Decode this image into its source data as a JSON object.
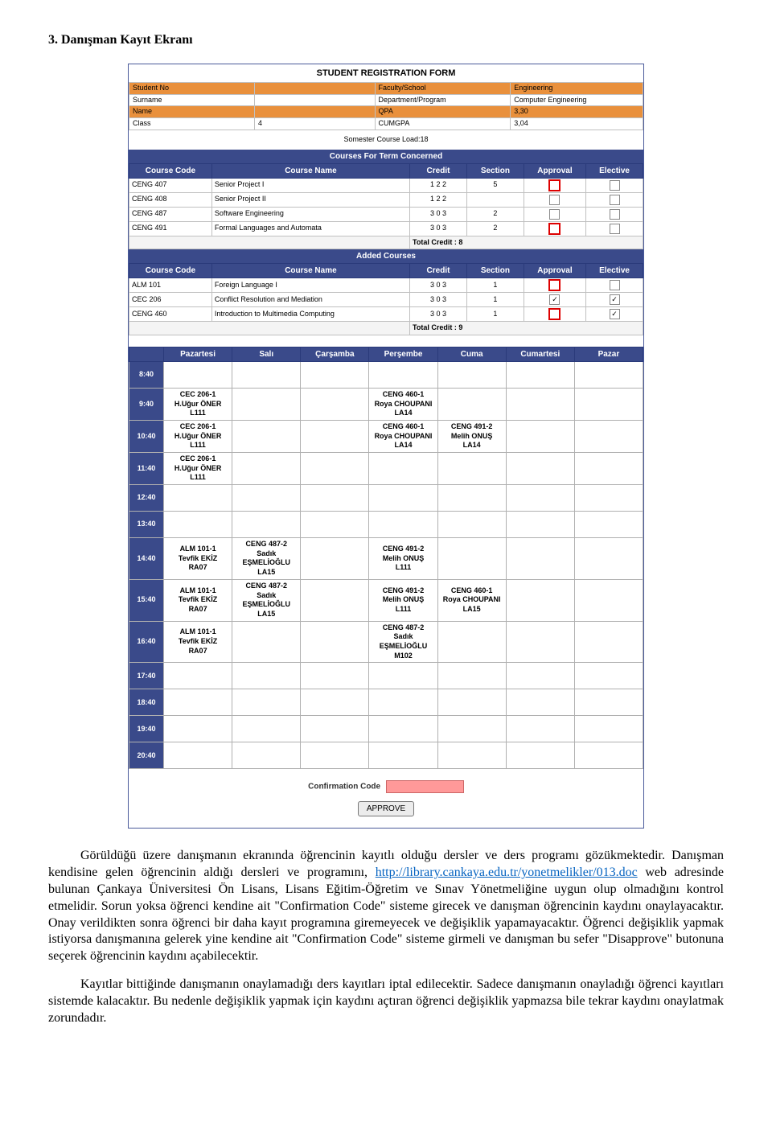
{
  "heading": "3.   Danışman Kayıt Ekranı",
  "reg": {
    "formTitle": "STUDENT REGISTRATION FORM",
    "labels": {
      "studentNo": "Student No",
      "faculty": "Faculty/School",
      "facultyVal": "Engineering",
      "surname": "Surname",
      "dept": "Department/Program",
      "deptVal": "Computer Engineering",
      "name": "Name",
      "qpa": "QPA",
      "qpaVal": "3,30",
      "class": "Class",
      "classVal": "4",
      "cum": "CUMGPA",
      "cumVal": "3,04"
    },
    "semLoad": "Somester Course Load:18",
    "termBand": "Courses For Term Concerned",
    "headers": {
      "c": "Course Code",
      "n": "Course Name",
      "cr": "Credit",
      "s": "Section",
      "a": "Approval",
      "e": "Elective"
    },
    "rows": [
      {
        "c": "CENG 407",
        "n": "Senior Project I",
        "cr": "1 2 2",
        "s": "5",
        "a": "red",
        "e": ""
      },
      {
        "c": "CENG 408",
        "n": "Senior Project II",
        "cr": "1 2 2",
        "s": "",
        "a": "",
        "e": ""
      },
      {
        "c": "CENG 487",
        "n": "Software Engineering",
        "cr": "3 0 3",
        "s": "2",
        "a": "",
        "e": ""
      },
      {
        "c": "CENG 491",
        "n": "Formal Languages and Automata",
        "cr": "3 0 3",
        "s": "2",
        "a": "red",
        "e": ""
      }
    ],
    "tot1": "Total Credit : 8",
    "addBand": "Added Courses",
    "rows2": [
      {
        "c": "ALM 101",
        "n": "Foreign Language I",
        "cr": "3 0 3",
        "s": "1",
        "a": "red",
        "e": ""
      },
      {
        "c": "CEC 206",
        "n": "Conflict Resolution and Mediation",
        "cr": "3 0 3",
        "s": "1",
        "a": "ch",
        "e": "ch"
      },
      {
        "c": "CENG 460",
        "n": "Introduction to Multimedia Computing",
        "cr": "3 0 3",
        "s": "1",
        "a": "red",
        "e": "ch"
      }
    ],
    "tot2": "Total Credit : 9"
  },
  "days": [
    "Pazartesi",
    "Salı",
    "Çarşamba",
    "Perşembe",
    "Cuma",
    "Cumartesi",
    "Pazar"
  ],
  "times": [
    "8:40",
    "9:40",
    "10:40",
    "11:40",
    "12:40",
    "13:40",
    "14:40",
    "15:40",
    "16:40",
    "17:40",
    "18:40",
    "19:40",
    "20:40"
  ],
  "sched": {
    "9:40": {
      "Pazartesi": "CEC 206-1\nH.Uğur ÖNER\nL111",
      "Perşembe": "CENG 460-1\nRoya CHOUPANI\nLA14"
    },
    "10:40": {
      "Pazartesi": "CEC 206-1\nH.Uğur ÖNER\nL111",
      "Perşembe": "CENG 460-1\nRoya CHOUPANI\nLA14",
      "Cuma": "CENG 491-2\nMelih ONUŞ\nLA14"
    },
    "11:40": {
      "Pazartesi": "CEC 206-1\nH.Uğur ÖNER\nL111"
    },
    "14:40": {
      "Pazartesi": "ALM 101-1\nTevfik EKİZ\nRA07",
      "Salı": "CENG 487-2\nSadık EŞMELİOĞLU\nLA15",
      "Perşembe": "CENG 491-2\nMelih ONUŞ\nL111"
    },
    "15:40": {
      "Pazartesi": "ALM 101-1\nTevfik EKİZ\nRA07",
      "Salı": "CENG 487-2\nSadık EŞMELİOĞLU\nLA15",
      "Perşembe": "CENG 491-2\nMelih ONUŞ\nL111",
      "Cuma": "CENG 460-1\nRoya CHOUPANI\nLA15"
    },
    "16:40": {
      "Pazartesi": "ALM 101-1\nTevfik EKİZ\nRA07",
      "Perşembe": "CENG 487-2\nSadık EŞMELİOĞLU\nM102"
    }
  },
  "conf": {
    "label": "Confirmation Code",
    "button": "APPROVE"
  },
  "p1a": "Görüldüğü üzere danışmanın ekranında öğrencinin kayıtlı olduğu dersler ve ders programı gözükmektedir. Danışman kendisine gelen öğrencinin aldığı dersleri ve programını, ",
  "link": {
    "text": "http://library.cankaya.edu.tr/yonetmelikler/013.doc"
  },
  "p1b": " web adresinde bulunan Çankaya Üniversitesi Ön Lisans, Lisans Eğitim-Öğretim ve Sınav Yönetmeliğine uygun olup olmadığını kontrol etmelidir. Sorun yoksa öğrenci kendine ait \"Confirmation Code\" sisteme girecek ve danışman öğrencinin kaydını onaylayacaktır. Onay verildikten sonra öğrenci bir daha kayıt programına giremeyecek ve değişiklik yapamayacaktır. Öğrenci değişiklik yapmak istiyorsa danışmanına gelerek yine kendine ait \"Confirmation Code\" sisteme girmeli ve danışman bu sefer \"Disapprove\" butonuna seçerek öğrencinin kaydını açabilecektir.",
  "p2": "Kayıtlar bittiğinde danışmanın onaylamadığı ders kayıtları iptal edilecektir. Sadece danışmanın onayladığı öğrenci kayıtları sistemde kalacaktır. Bu nedenle değişiklik yapmak için kaydını açtıran öğrenci değişiklik yapmazsa bile tekrar kaydını onaylatmak zorundadır."
}
